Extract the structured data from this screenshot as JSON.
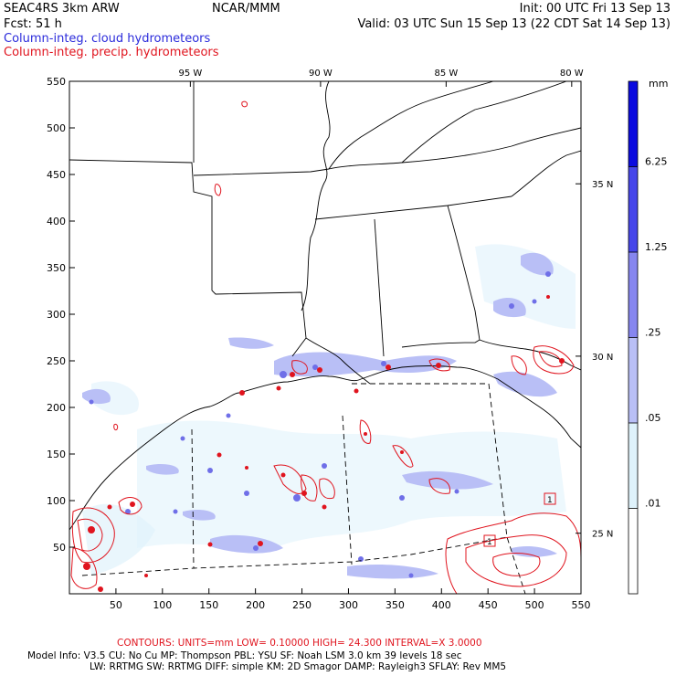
{
  "header": {
    "project": "SEAC4RS   3km ARW",
    "forecast": "Fcst:    51 h",
    "center": "NCAR/MMM",
    "init": "Init: 00 UTC Fri 13 Sep 13",
    "valid": "Valid: 03 UTC Sun 15 Sep 13 (22 CDT Sat 14 Sep 13)",
    "field_cloud": "Column-integ. cloud hydrometeors",
    "field_precip": "Column-integ. precip. hydrometeors"
  },
  "colors": {
    "cloud_field": "#2b2bdb",
    "precip_contour": "#e0141e"
  },
  "chart_data": {
    "type": "map",
    "x_ticks": [
      "50",
      "100",
      "150",
      "200",
      "250",
      "300",
      "350",
      "400",
      "450",
      "500",
      "550"
    ],
    "y_ticks": [
      "50",
      "100",
      "150",
      "200",
      "250",
      "300",
      "350",
      "400",
      "450",
      "500",
      "550"
    ],
    "xlim": [
      0,
      550
    ],
    "ylim": [
      0,
      550
    ],
    "lon_labels": [
      {
        "text": "95 W",
        "grid_x": 130
      },
      {
        "text": "90 W",
        "grid_x": 270
      },
      {
        "text": "85 W",
        "grid_x": 405
      },
      {
        "text": "80 W",
        "grid_x": 540
      }
    ],
    "lat_labels": [
      {
        "text": "35 N",
        "grid_y": 440
      },
      {
        "text": "30 N",
        "grid_y": 255
      },
      {
        "text": "25 N",
        "grid_y": 65
      }
    ],
    "colorbar": {
      "unit": "mm",
      "levels": [
        "6.25",
        "1.25",
        ".25",
        ".05",
        ".01"
      ],
      "colors": [
        "#0a0adf",
        "#4646ea",
        "#8686ef",
        "#b9bff6",
        "#dff2fb",
        "#ffffff"
      ]
    },
    "contour_info": {
      "text": "CONTOURS:  UNITS=mm  LOW= 0.10000      HIGH=  24.300      INTERVAL=X  3.0000",
      "low": 0.1,
      "high": 24.3,
      "interval_factor": 3.0
    },
    "contour_labels": [
      "1",
      "1"
    ]
  },
  "footer": {
    "model_line1": "Model Info: V3.5        CU: No Cu        MP: Thompson     PBL: YSU        SF: Noah LSM      3.0 km   39 levels    18 sec",
    "model_line2": "LW: RRTMG     SW: RRTMG   DIFF: simple KM: 2D Smagor DAMP: Rayleigh3   SFLAY: Rev MM5"
  }
}
